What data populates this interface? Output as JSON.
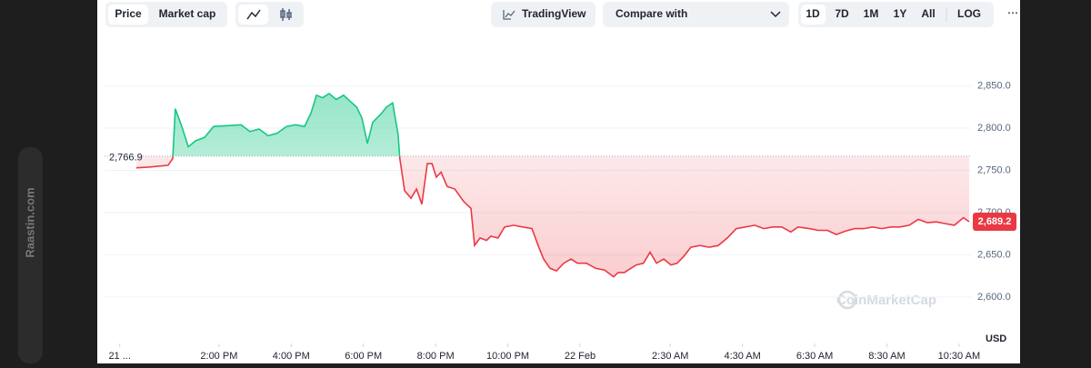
{
  "toolbar": {
    "price": "Price",
    "market_cap": "Market cap",
    "tradingview": "TradingView",
    "compare": "Compare with",
    "ranges": [
      "1D",
      "7D",
      "1M",
      "1Y",
      "All",
      "LOG"
    ],
    "more": "⋯"
  },
  "watermark": "CoinMarketCap",
  "side_label": "Raastin.com",
  "chart_data": {
    "type": "line",
    "y_label": "USD",
    "grid": true,
    "colors": {
      "up": "#16c784",
      "down": "#ea3943"
    },
    "baseline": {
      "value": 2766.9,
      "label": "2,766.9"
    },
    "last_price": {
      "value": 2689.2,
      "label": "2,689.2"
    },
    "xlim": [
      10.83,
      34.83
    ],
    "ylim": [
      2545,
      2898
    ],
    "xticks": [
      {
        "value": 11.25,
        "label": "21 ..."
      },
      {
        "value": 14,
        "label": "2:00 PM"
      },
      {
        "value": 16,
        "label": "4:00 PM"
      },
      {
        "value": 18,
        "label": "6:00 PM"
      },
      {
        "value": 20,
        "label": "8:00 PM"
      },
      {
        "value": 22,
        "label": "10:00 PM"
      },
      {
        "value": 24,
        "label": "22 Feb"
      },
      {
        "value": 26.5,
        "label": "2:30 AM"
      },
      {
        "value": 28.5,
        "label": "4:30 AM"
      },
      {
        "value": 30.5,
        "label": "6:30 AM"
      },
      {
        "value": 32.5,
        "label": "8:30 AM"
      },
      {
        "value": 34.5,
        "label": "10:30 AM"
      }
    ],
    "yticks": [
      {
        "value": 2600,
        "label": "2,600.0"
      },
      {
        "value": 2650,
        "label": "2,650.0"
      },
      {
        "value": 2700,
        "label": "2,700.0"
      },
      {
        "value": 2750,
        "label": "2,750.0"
      },
      {
        "value": 2800,
        "label": "2,800.0"
      },
      {
        "value": 2850,
        "label": "2,850.0"
      }
    ],
    "x": [
      11.71,
      12.09,
      12.59,
      12.72,
      12.79,
      12.97,
      13.15,
      13.35,
      13.6,
      13.85,
      14.23,
      14.61,
      14.86,
      15.11,
      15.36,
      15.61,
      15.87,
      16.12,
      16.37,
      16.55,
      16.7,
      16.87,
      17.05,
      17.25,
      17.45,
      17.63,
      17.81,
      17.96,
      18.11,
      18.26,
      18.51,
      18.64,
      18.81,
      18.96,
      19.01,
      19.14,
      19.32,
      19.47,
      19.62,
      19.77,
      19.9,
      20.02,
      20.15,
      20.32,
      20.53,
      20.78,
      20.98,
      21.08,
      21.23,
      21.41,
      21.53,
      21.73,
      21.91,
      22.16,
      22.41,
      22.67,
      22.84,
      22.99,
      23.17,
      23.35,
      23.55,
      23.75,
      23.93,
      24.18,
      24.43,
      24.68,
      24.93,
      25.06,
      25.23,
      25.41,
      25.56,
      25.76,
      25.94,
      26.12,
      26.32,
      26.52,
      26.69,
      26.87,
      27.07,
      27.32,
      27.58,
      27.83,
      28.08,
      28.33,
      28.58,
      28.84,
      29.09,
      29.34,
      29.59,
      29.84,
      30.04,
      30.35,
      30.6,
      30.85,
      31.1,
      31.35,
      31.61,
      31.86,
      32.11,
      32.36,
      32.61,
      32.86,
      33.12,
      33.37,
      33.62,
      33.87,
      34.12,
      34.37,
      34.62,
      34.78
    ],
    "values": [
      2753,
      2754,
      2756,
      2764,
      2823,
      2802,
      2778,
      2785,
      2789,
      2802,
      2803,
      2804,
      2796,
      2799,
      2791,
      2794,
      2802,
      2804,
      2802,
      2818,
      2839,
      2836,
      2841,
      2834,
      2839,
      2832,
      2825,
      2812,
      2782,
      2807,
      2818,
      2825,
      2830,
      2793,
      2764,
      2726,
      2717,
      2728,
      2710,
      2758,
      2758,
      2742,
      2748,
      2731,
      2728,
      2713,
      2705,
      2661,
      2670,
      2667,
      2672,
      2670,
      2683,
      2685,
      2683,
      2681,
      2661,
      2645,
      2634,
      2631,
      2640,
      2645,
      2640,
      2640,
      2634,
      2632,
      2624,
      2629,
      2629,
      2634,
      2638,
      2640,
      2653,
      2640,
      2645,
      2638,
      2640,
      2648,
      2659,
      2661,
      2659,
      2661,
      2670,
      2681,
      2683,
      2685,
      2681,
      2683,
      2683,
      2677,
      2683,
      2681,
      2679,
      2679,
      2674,
      2678,
      2681,
      2681,
      2683,
      2681,
      2683,
      2683,
      2685,
      2692,
      2688,
      2689,
      2687,
      2685,
      2694,
      2689.2
    ]
  }
}
